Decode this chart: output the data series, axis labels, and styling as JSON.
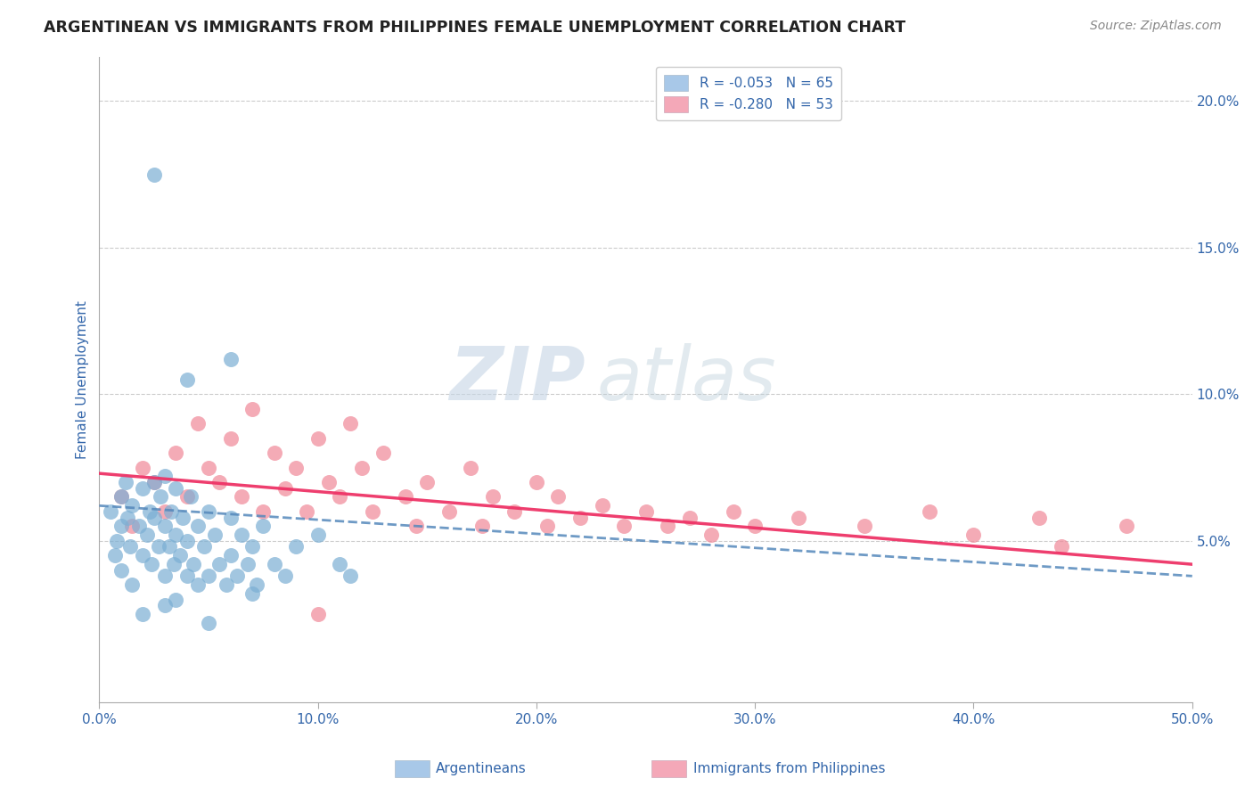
{
  "title": "ARGENTINEAN VS IMMIGRANTS FROM PHILIPPINES FEMALE UNEMPLOYMENT CORRELATION CHART",
  "source": "Source: ZipAtlas.com",
  "ylabel": "Female Unemployment",
  "x_min": 0.0,
  "x_max": 0.5,
  "y_min": -0.005,
  "y_max": 0.215,
  "x_ticks": [
    0.0,
    0.1,
    0.2,
    0.3,
    0.4,
    0.5
  ],
  "x_tick_labels": [
    "0.0%",
    "10.0%",
    "20.0%",
    "30.0%",
    "40.0%",
    "50.0%"
  ],
  "y_ticks": [
    0.05,
    0.1,
    0.15,
    0.2
  ],
  "y_tick_labels": [
    "5.0%",
    "10.0%",
    "15.0%",
    "20.0%"
  ],
  "legend_labels": [
    "R = -0.053   N = 65",
    "R = -0.280   N = 53"
  ],
  "legend_colors": [
    "#a8c8e8",
    "#f4a8b8"
  ],
  "blue_color": "#7bafd4",
  "pink_color": "#f08898",
  "blue_line_color": "#5588bb",
  "pink_line_color": "#ee3366",
  "grid_color": "#cccccc",
  "title_color": "#222222",
  "axis_label_color": "#3366aa",
  "tick_label_color": "#3366aa",
  "blue_scatter_x": [
    0.005,
    0.007,
    0.008,
    0.01,
    0.01,
    0.01,
    0.012,
    0.013,
    0.014,
    0.015,
    0.015,
    0.018,
    0.02,
    0.02,
    0.022,
    0.023,
    0.024,
    0.025,
    0.025,
    0.027,
    0.028,
    0.03,
    0.03,
    0.03,
    0.032,
    0.033,
    0.034,
    0.035,
    0.035,
    0.037,
    0.038,
    0.04,
    0.04,
    0.042,
    0.043,
    0.045,
    0.045,
    0.048,
    0.05,
    0.05,
    0.053,
    0.055,
    0.058,
    0.06,
    0.06,
    0.063,
    0.065,
    0.068,
    0.07,
    0.072,
    0.075,
    0.08,
    0.085,
    0.09,
    0.1,
    0.11,
    0.115,
    0.025,
    0.04,
    0.06,
    0.02,
    0.03,
    0.05,
    0.07,
    0.035
  ],
  "blue_scatter_y": [
    0.06,
    0.045,
    0.05,
    0.055,
    0.04,
    0.065,
    0.07,
    0.058,
    0.048,
    0.062,
    0.035,
    0.055,
    0.045,
    0.068,
    0.052,
    0.06,
    0.042,
    0.058,
    0.07,
    0.048,
    0.065,
    0.055,
    0.038,
    0.072,
    0.048,
    0.06,
    0.042,
    0.052,
    0.068,
    0.045,
    0.058,
    0.05,
    0.038,
    0.065,
    0.042,
    0.055,
    0.035,
    0.048,
    0.06,
    0.038,
    0.052,
    0.042,
    0.035,
    0.058,
    0.045,
    0.038,
    0.052,
    0.042,
    0.048,
    0.035,
    0.055,
    0.042,
    0.038,
    0.048,
    0.052,
    0.042,
    0.038,
    0.175,
    0.105,
    0.112,
    0.025,
    0.028,
    0.022,
    0.032,
    0.03
  ],
  "pink_scatter_x": [
    0.01,
    0.015,
    0.02,
    0.025,
    0.03,
    0.035,
    0.04,
    0.045,
    0.05,
    0.055,
    0.06,
    0.065,
    0.07,
    0.075,
    0.08,
    0.085,
    0.09,
    0.095,
    0.1,
    0.105,
    0.11,
    0.115,
    0.12,
    0.125,
    0.13,
    0.14,
    0.145,
    0.15,
    0.16,
    0.17,
    0.175,
    0.18,
    0.19,
    0.2,
    0.205,
    0.21,
    0.22,
    0.23,
    0.24,
    0.25,
    0.26,
    0.27,
    0.28,
    0.29,
    0.3,
    0.32,
    0.35,
    0.38,
    0.4,
    0.43,
    0.44,
    0.47,
    0.1
  ],
  "pink_scatter_y": [
    0.065,
    0.055,
    0.075,
    0.07,
    0.06,
    0.08,
    0.065,
    0.09,
    0.075,
    0.07,
    0.085,
    0.065,
    0.095,
    0.06,
    0.08,
    0.068,
    0.075,
    0.06,
    0.085,
    0.07,
    0.065,
    0.09,
    0.075,
    0.06,
    0.08,
    0.065,
    0.055,
    0.07,
    0.06,
    0.075,
    0.055,
    0.065,
    0.06,
    0.07,
    0.055,
    0.065,
    0.058,
    0.062,
    0.055,
    0.06,
    0.055,
    0.058,
    0.052,
    0.06,
    0.055,
    0.058,
    0.055,
    0.06,
    0.052,
    0.058,
    0.048,
    0.055,
    0.025
  ],
  "blue_line_x": [
    0.0,
    0.5
  ],
  "blue_line_y_start": 0.062,
  "blue_line_y_end": 0.038,
  "pink_line_x": [
    0.0,
    0.5
  ],
  "pink_line_y_start": 0.073,
  "pink_line_y_end": 0.042,
  "legend_argentineans": "Argentineans",
  "legend_philippines": "Immigrants from Philippines",
  "watermark_zip": "ZIP",
  "watermark_atlas": "atlas",
  "watermark_zip_color": "#c5d5e5",
  "watermark_atlas_color": "#b8ccd8"
}
